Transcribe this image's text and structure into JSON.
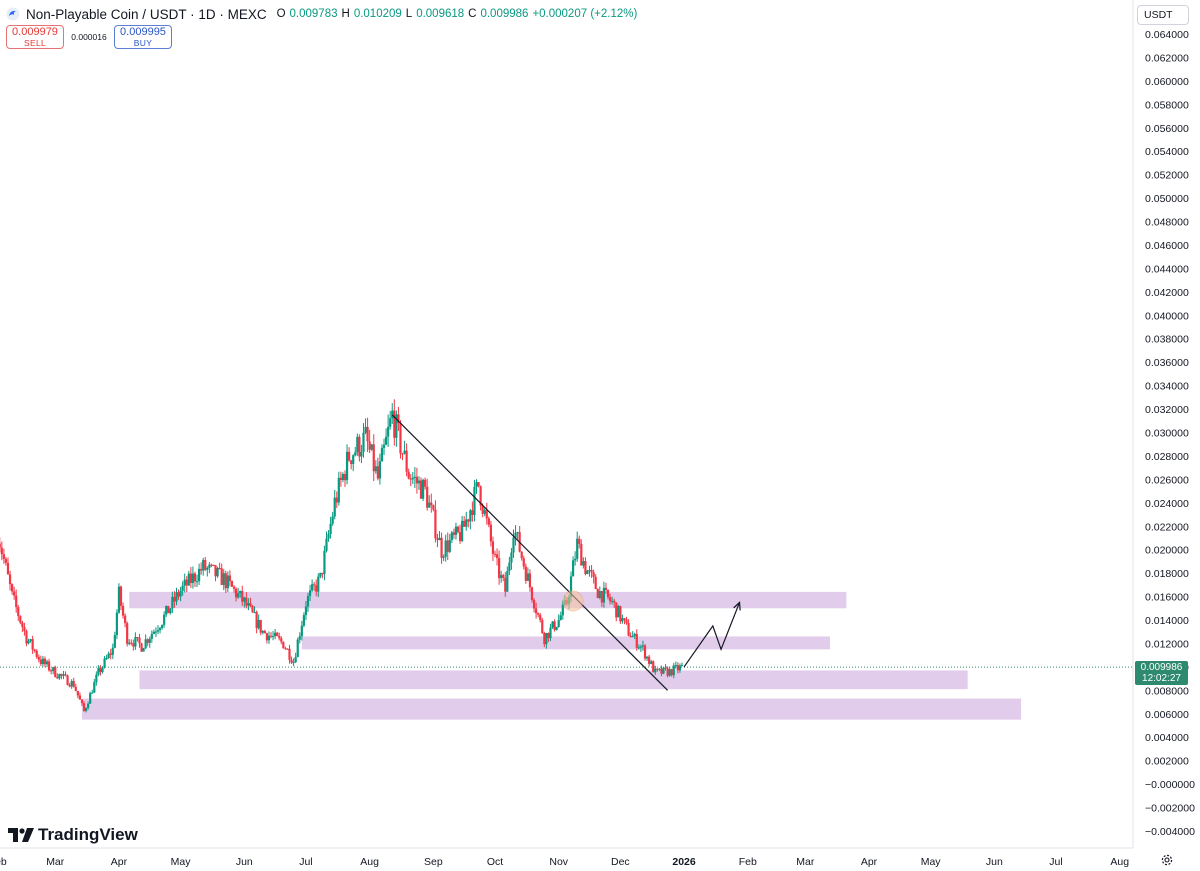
{
  "header": {
    "title": "Non-Playable Coin / USDT · 1D · MEXC",
    "ohlc": [
      {
        "label": "O",
        "value": "0.009783"
      },
      {
        "label": "H",
        "value": "0.010209"
      },
      {
        "label": "L",
        "value": "0.009618"
      },
      {
        "label": "C",
        "value": "0.009986"
      }
    ],
    "change": "+0.000207 (+2.12%)"
  },
  "trade": {
    "sell_price": "0.009979",
    "sell_label": "SELL",
    "spread": "0.000016",
    "buy_price": "0.009995",
    "buy_label": "BUY"
  },
  "currency": "USDT",
  "last_price": {
    "value": "0.009986",
    "countdown": "12:02:27"
  },
  "branding": "TradingView",
  "colors": {
    "up": "#089981",
    "down": "#f23645",
    "zone": "#dcc3e9",
    "price_tag": "#2e8a6e"
  },
  "chart_data": {
    "type": "candlestick",
    "symbol": "Non-Playable Coin / USDT",
    "interval": "1D",
    "exchange": "MEXC",
    "ylim": [
      -0.005,
      0.065
    ],
    "y_ticks": [
      "0.064000",
      "0.062000",
      "0.060000",
      "0.058000",
      "0.056000",
      "0.054000",
      "0.052000",
      "0.050000",
      "0.048000",
      "0.046000",
      "0.044000",
      "0.042000",
      "0.040000",
      "0.038000",
      "0.036000",
      "0.034000",
      "0.032000",
      "0.030000",
      "0.028000",
      "0.026000",
      "0.024000",
      "0.022000",
      "0.020000",
      "0.018000",
      "0.016000",
      "0.014000",
      "0.012000",
      "0.010000",
      "0.008000",
      "0.006000",
      "0.004000",
      "0.002000",
      "−0.000000",
      "−0.002000",
      "−0.004000"
    ],
    "x_ticks": [
      "Feb",
      "Mar",
      "Apr",
      "May",
      "Jun",
      "Jul",
      "Aug",
      "Sep",
      "Oct",
      "Nov",
      "Dec",
      "2026",
      "Feb",
      "Mar",
      "Apr",
      "May",
      "Jun",
      "Jul",
      "Aug"
    ],
    "price_path": [
      [
        "2025-02-01",
        0.0215
      ],
      [
        "2025-02-08",
        0.016
      ],
      [
        "2025-02-15",
        0.0125
      ],
      [
        "2025-02-22",
        0.0105
      ],
      [
        "2025-03-01",
        0.0095
      ],
      [
        "2025-03-10",
        0.0085
      ],
      [
        "2025-03-15",
        0.0062
      ],
      [
        "2025-03-22",
        0.0095
      ],
      [
        "2025-03-29",
        0.0115
      ],
      [
        "2025-04-01",
        0.0162
      ],
      [
        "2025-04-05",
        0.0125
      ],
      [
        "2025-04-12",
        0.0118
      ],
      [
        "2025-04-22",
        0.014
      ],
      [
        "2025-05-01",
        0.0165
      ],
      [
        "2025-05-12",
        0.0185
      ],
      [
        "2025-05-22",
        0.0175
      ],
      [
        "2025-06-01",
        0.0155
      ],
      [
        "2025-06-10",
        0.013
      ],
      [
        "2025-06-20",
        0.012
      ],
      [
        "2025-06-25",
        0.0105
      ],
      [
        "2025-07-01",
        0.0155
      ],
      [
        "2025-07-08",
        0.0175
      ],
      [
        "2025-07-15",
        0.024
      ],
      [
        "2025-07-22",
        0.028
      ],
      [
        "2025-07-30",
        0.0295
      ],
      [
        "2025-08-05",
        0.026
      ],
      [
        "2025-08-12",
        0.0315
      ],
      [
        "2025-08-20",
        0.0265
      ],
      [
        "2025-08-28",
        0.025
      ],
      [
        "2025-09-05",
        0.02
      ],
      [
        "2025-09-15",
        0.0215
      ],
      [
        "2025-09-23",
        0.0255
      ],
      [
        "2025-10-01",
        0.019
      ],
      [
        "2025-10-06",
        0.0165
      ],
      [
        "2025-10-10",
        0.022
      ],
      [
        "2025-10-17",
        0.0175
      ],
      [
        "2025-10-25",
        0.0125
      ],
      [
        "2025-11-01",
        0.014
      ],
      [
        "2025-11-05",
        0.0155
      ],
      [
        "2025-11-10",
        0.0205
      ],
      [
        "2025-11-14",
        0.0185
      ],
      [
        "2025-11-20",
        0.0165
      ],
      [
        "2025-11-27",
        0.0155
      ],
      [
        "2025-12-05",
        0.013
      ],
      [
        "2025-12-12",
        0.0115
      ],
      [
        "2025-12-18",
        0.0095
      ],
      [
        "2025-12-25",
        0.0096
      ],
      [
        "2025-12-31",
        0.009986
      ]
    ],
    "zones": [
      {
        "from": 0.015,
        "to": 0.0164,
        "start": "2025-04-06",
        "end": "2026-03-21"
      },
      {
        "from": 0.0115,
        "to": 0.0126,
        "start": "2025-06-29",
        "end": "2026-03-13"
      },
      {
        "from": 0.0081,
        "to": 0.0097,
        "start": "2025-04-11",
        "end": "2026-05-19"
      },
      {
        "from": 0.0055,
        "to": 0.0073,
        "start": "2025-03-14",
        "end": "2026-06-14"
      }
    ],
    "trendline": [
      [
        "2025-08-12",
        0.0315
      ],
      [
        "2025-12-24",
        0.008
      ]
    ],
    "projection": [
      [
        "2026-01-01",
        0.01
      ],
      [
        "2026-01-15",
        0.0135
      ],
      [
        "2026-01-19",
        0.0115
      ],
      [
        "2026-01-28",
        0.0155
      ]
    ]
  }
}
